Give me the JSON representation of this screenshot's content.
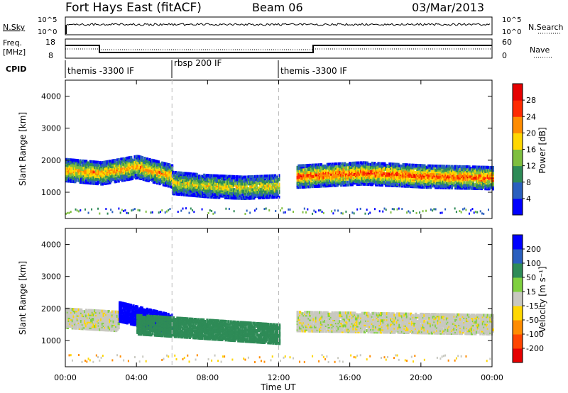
{
  "header": {
    "title": "Fort Hays East (fitACF)",
    "beam": "Beam 06",
    "date": "03/Mar/2013"
  },
  "top_panels": {
    "nsky": {
      "label": "N.Sky",
      "ymax_label": "10^5",
      "ymin_label": "10^0"
    },
    "nsearch": {
      "label": "N.Search",
      "ymax_label": "10^5",
      "ymin_label": "10^0"
    },
    "freq": {
      "label": "Freq.",
      "unit": "[MHz]",
      "ticks": [
        "18",
        "8"
      ]
    },
    "nave": {
      "label": "Nave",
      "ticks": [
        "60",
        "0"
      ]
    },
    "cpid": {
      "label": "CPID",
      "segments": [
        {
          "label": "themis -3300 IF",
          "start_hour": 0
        },
        {
          "label": "rbsp 200 IF",
          "start_hour": 6
        },
        {
          "label": "themis -3300 IF",
          "start_hour": 12
        }
      ]
    }
  },
  "chart_data": [
    {
      "type": "heatmap",
      "name": "power",
      "ylabel": "Slant Range [km]",
      "ylim": [
        180,
        4500
      ],
      "yticks": [
        "1000",
        "2000",
        "3000",
        "4000"
      ],
      "xlim": [
        0,
        24
      ],
      "colorbar": {
        "label": "Power [dB]",
        "ticks": [
          "4",
          "8",
          "12",
          "16",
          "20",
          "24",
          "28"
        ],
        "colors": [
          "#0000ff",
          "#2a5fbf",
          "#2e8b57",
          "#7fbf3f",
          "#ffd700",
          "#ff8c00",
          "#ff2a00",
          "#e60000"
        ]
      },
      "echo_bands": [
        {
          "t_start": 0.0,
          "t_end": 6.0,
          "range_center": [
            1700,
            1600,
            1800,
            1500
          ],
          "level": 22
        },
        {
          "t_start": 6.0,
          "t_end": 12.0,
          "range_center": [
            1300,
            1200,
            1150,
            1200
          ],
          "level": 18
        },
        {
          "t_start": 13.0,
          "t_end": 24.0,
          "range_center": [
            1500,
            1600,
            1500,
            1450
          ],
          "level": 26
        }
      ]
    },
    {
      "type": "heatmap",
      "name": "velocity",
      "ylabel": "Slant Range [km]",
      "ylim": [
        180,
        4500
      ],
      "yticks": [
        "1000",
        "2000",
        "3000",
        "4000"
      ],
      "xlim": [
        0,
        24
      ],
      "xticks": [
        "00:00",
        "04:00",
        "08:00",
        "12:00",
        "16:00",
        "20:00",
        "00:00"
      ],
      "xlabel": "Time UT",
      "colorbar": {
        "label": "Velocity [m s⁻¹]",
        "ticks": [
          "200",
          "100",
          "50",
          "15",
          "-15",
          "-50",
          "-100",
          "-200"
        ],
        "colors": [
          "#0000ff",
          "#2a5fbf",
          "#2e8b57",
          "#7fd03f",
          "#c8c8c0",
          "#ffd700",
          "#ff8c00",
          "#ff4500",
          "#e60000"
        ]
      },
      "echo_bands": [
        {
          "t_start": 0.0,
          "t_end": 3.0,
          "range_center": [
            1700,
            1600
          ],
          "velocity": 0
        },
        {
          "t_start": 3.0,
          "t_end": 6.0,
          "range_center": [
            1900,
            1500
          ],
          "velocity": 200
        },
        {
          "t_start": 4.0,
          "t_end": 12.0,
          "range_center": [
            1500,
            1200
          ],
          "velocity": 50
        },
        {
          "t_start": 13.0,
          "t_end": 24.0,
          "range_center": [
            1600,
            1500
          ],
          "velocity": 0
        }
      ]
    }
  ]
}
